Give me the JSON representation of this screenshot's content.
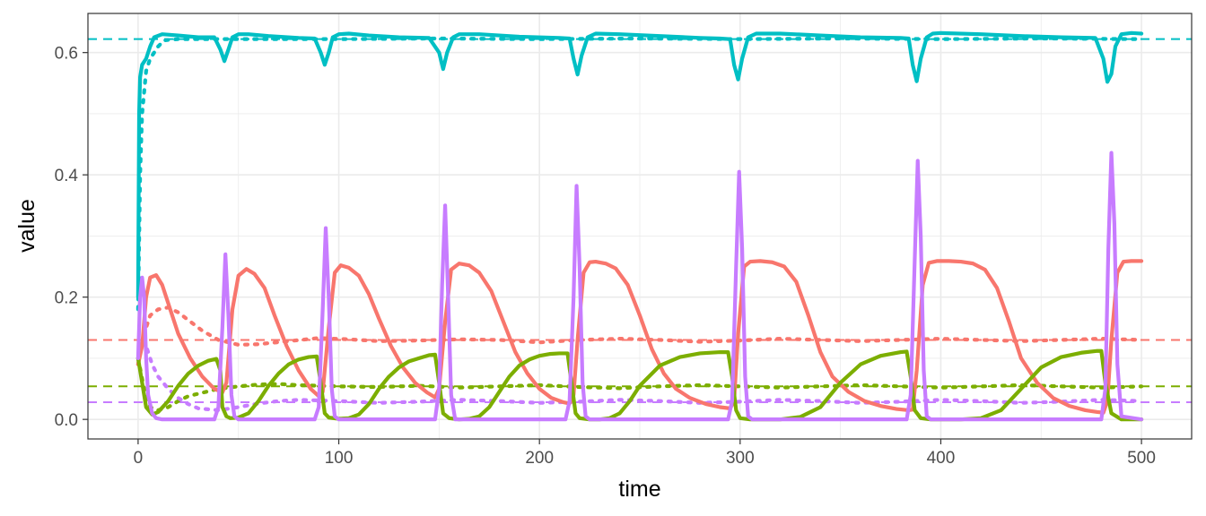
{
  "chart_data": {
    "type": "line",
    "title": "",
    "xlabel": "time",
    "ylabel": "value",
    "xlim": [
      -25,
      525
    ],
    "ylim": [
      -0.032,
      0.664
    ],
    "x_ticks": [
      0,
      100,
      200,
      300,
      400,
      500
    ],
    "x_tick_labels": [
      "0",
      "100",
      "200",
      "300",
      "400",
      "500"
    ],
    "y_ticks": [
      0.0,
      0.2,
      0.4,
      0.6
    ],
    "y_tick_labels": [
      "0.0",
      "0.2",
      "0.4",
      "0.6"
    ],
    "grid": true,
    "legend": "none",
    "colors": {
      "red": "#F8766D",
      "green": "#7CAE00",
      "cyan": "#00BFC4",
      "purple": "#C77CFF",
      "grid": "#ebebeb",
      "panel_border": "#333333"
    },
    "series": [
      {
        "color": "red",
        "style": "solid",
        "x": [
          0,
          2,
          4,
          6,
          9,
          12,
          16,
          20,
          26,
          32,
          38,
          42,
          44,
          47,
          50,
          54,
          58,
          63,
          68,
          74,
          80,
          86,
          90,
          92,
          95,
          98,
          101,
          105,
          110,
          115,
          120,
          126,
          132,
          138,
          144,
          148,
          150,
          153,
          156,
          160,
          165,
          170,
          176,
          182,
          188,
          194,
          200,
          206,
          212,
          215,
          217,
          219,
          222,
          225,
          228,
          233,
          238,
          244,
          250,
          256,
          262,
          268,
          275,
          283,
          290,
          295,
          297,
          299,
          302,
          305,
          310,
          316,
          322,
          328,
          334,
          340,
          346,
          354,
          362,
          370,
          378,
          384,
          386,
          388,
          391,
          394,
          398,
          404,
          410,
          416,
          422,
          428,
          434,
          440,
          448,
          456,
          464,
          472,
          478,
          481,
          483,
          485,
          488,
          491,
          495,
          500
        ],
        "y": [
          0.09,
          0.12,
          0.2,
          0.232,
          0.236,
          0.22,
          0.18,
          0.14,
          0.1,
          0.07,
          0.05,
          0.044,
          0.06,
          0.18,
          0.235,
          0.246,
          0.238,
          0.215,
          0.17,
          0.12,
          0.08,
          0.05,
          0.038,
          0.045,
          0.15,
          0.24,
          0.252,
          0.248,
          0.235,
          0.205,
          0.165,
          0.12,
          0.085,
          0.06,
          0.044,
          0.036,
          0.05,
          0.16,
          0.245,
          0.255,
          0.252,
          0.24,
          0.21,
          0.16,
          0.11,
          0.075,
          0.05,
          0.035,
          0.028,
          0.026,
          0.04,
          0.13,
          0.24,
          0.257,
          0.258,
          0.255,
          0.247,
          0.22,
          0.17,
          0.115,
          0.075,
          0.05,
          0.035,
          0.025,
          0.02,
          0.018,
          0.03,
          0.14,
          0.25,
          0.258,
          0.259,
          0.257,
          0.25,
          0.225,
          0.17,
          0.11,
          0.07,
          0.045,
          0.03,
          0.022,
          0.017,
          0.015,
          0.016,
          0.08,
          0.22,
          0.256,
          0.259,
          0.259,
          0.258,
          0.255,
          0.245,
          0.215,
          0.16,
          0.1,
          0.06,
          0.035,
          0.022,
          0.015,
          0.012,
          0.011,
          0.03,
          0.13,
          0.24,
          0.258,
          0.259,
          0.259
        ]
      },
      {
        "color": "red",
        "style": "dotted",
        "x": [
          0,
          3,
          6,
          10,
          15,
          20,
          26,
          32,
          40,
          50,
          60,
          75,
          90,
          105,
          120,
          140,
          160,
          180,
          200,
          220,
          240,
          260,
          280,
          300,
          320,
          340,
          360,
          380,
          400,
          420,
          440,
          460,
          480,
          500
        ],
        "y": [
          0.09,
          0.14,
          0.17,
          0.18,
          0.183,
          0.175,
          0.16,
          0.145,
          0.13,
          0.122,
          0.123,
          0.128,
          0.133,
          0.131,
          0.128,
          0.129,
          0.131,
          0.13,
          0.126,
          0.13,
          0.132,
          0.13,
          0.127,
          0.129,
          0.132,
          0.13,
          0.128,
          0.13,
          0.132,
          0.13,
          0.128,
          0.13,
          0.132,
          0.13
        ]
      },
      {
        "color": "red",
        "style": "dashed",
        "x": [
          -25,
          525
        ],
        "y": [
          0.13,
          0.13
        ]
      },
      {
        "color": "green",
        "style": "solid",
        "x": [
          0,
          2,
          4,
          7,
          10,
          15,
          20,
          25,
          30,
          35,
          39,
          41,
          42,
          44,
          46,
          50,
          55,
          60,
          65,
          70,
          75,
          80,
          85,
          89,
          91,
          93,
          95,
          100,
          105,
          110,
          115,
          120,
          125,
          130,
          135,
          140,
          145,
          148,
          150,
          152,
          155,
          160,
          165,
          170,
          175,
          180,
          185,
          190,
          195,
          200,
          205,
          210,
          214,
          216,
          218,
          220,
          225,
          230,
          235,
          240,
          245,
          250,
          260,
          270,
          280,
          290,
          294,
          296,
          298,
          300,
          305,
          310,
          320,
          330,
          340,
          350,
          360,
          370,
          380,
          383,
          385,
          387,
          390,
          395,
          400,
          410,
          420,
          430,
          440,
          450,
          460,
          470,
          478,
          480,
          482,
          485,
          490,
          500
        ],
        "y": [
          0.1,
          0.06,
          0.02,
          0.008,
          0.012,
          0.03,
          0.055,
          0.075,
          0.088,
          0.096,
          0.099,
          0.08,
          0.02,
          0.005,
          0.002,
          0.003,
          0.01,
          0.03,
          0.055,
          0.075,
          0.09,
          0.098,
          0.102,
          0.103,
          0.06,
          0.01,
          0.003,
          0.001,
          0.002,
          0.008,
          0.025,
          0.05,
          0.07,
          0.085,
          0.095,
          0.1,
          0.105,
          0.106,
          0.06,
          0.01,
          0.002,
          0.0,
          0.001,
          0.005,
          0.02,
          0.045,
          0.07,
          0.088,
          0.098,
          0.104,
          0.107,
          0.108,
          0.108,
          0.06,
          0.01,
          0.002,
          0.0,
          0.0,
          0.002,
          0.01,
          0.03,
          0.055,
          0.088,
          0.102,
          0.108,
          0.11,
          0.11,
          0.07,
          0.015,
          0.002,
          0.0,
          0.0,
          0.0,
          0.004,
          0.02,
          0.06,
          0.09,
          0.104,
          0.11,
          0.111,
          0.07,
          0.015,
          0.002,
          0.0,
          0.0,
          0.0,
          0.002,
          0.015,
          0.05,
          0.085,
          0.102,
          0.109,
          0.112,
          0.112,
          0.06,
          0.01,
          0.0,
          0.0
        ]
      },
      {
        "color": "green",
        "style": "dotted",
        "x": [
          0,
          3,
          6,
          10,
          15,
          20,
          25,
          30,
          40,
          50,
          60,
          70,
          80,
          100,
          120,
          140,
          160,
          180,
          200,
          220,
          240,
          260,
          280,
          300,
          320,
          340,
          360,
          380,
          400,
          420,
          440,
          460,
          480,
          500
        ],
        "y": [
          0.1,
          0.05,
          0.02,
          0.015,
          0.02,
          0.03,
          0.038,
          0.042,
          0.05,
          0.054,
          0.057,
          0.058,
          0.056,
          0.054,
          0.053,
          0.055,
          0.052,
          0.054,
          0.056,
          0.053,
          0.051,
          0.054,
          0.056,
          0.054,
          0.052,
          0.054,
          0.056,
          0.054,
          0.052,
          0.054,
          0.056,
          0.054,
          0.052,
          0.054
        ]
      },
      {
        "color": "green",
        "style": "dashed",
        "x": [
          -25,
          525
        ],
        "y": [
          0.054,
          0.054
        ]
      },
      {
        "color": "cyan",
        "style": "solid",
        "x": [
          0,
          0.5,
          1,
          2,
          4,
          6,
          8,
          12,
          20,
          30,
          38,
          41,
          43,
          45,
          47,
          50,
          55,
          65,
          80,
          88,
          91,
          93,
          95,
          97,
          100,
          105,
          115,
          130,
          145,
          150,
          152,
          154,
          157,
          160,
          170,
          190,
          210,
          215,
          217,
          219,
          221,
          224,
          228,
          240,
          260,
          280,
          290,
          295,
          297,
          299,
          301,
          304,
          308,
          320,
          340,
          360,
          380,
          384,
          386,
          388,
          390,
          393,
          396,
          400,
          420,
          440,
          460,
          477,
          481,
          483,
          485,
          487,
          490,
          495,
          500
        ],
        "y": [
          0.2,
          0.5,
          0.56,
          0.58,
          0.59,
          0.61,
          0.625,
          0.63,
          0.628,
          0.625,
          0.625,
          0.605,
          0.586,
          0.605,
          0.625,
          0.63,
          0.63,
          0.627,
          0.624,
          0.623,
          0.6,
          0.58,
          0.6,
          0.625,
          0.63,
          0.631,
          0.628,
          0.625,
          0.624,
          0.6,
          0.573,
          0.6,
          0.625,
          0.63,
          0.63,
          0.626,
          0.624,
          0.623,
          0.59,
          0.564,
          0.595,
          0.625,
          0.631,
          0.63,
          0.627,
          0.624,
          0.623,
          0.622,
          0.58,
          0.556,
          0.59,
          0.625,
          0.631,
          0.631,
          0.628,
          0.625,
          0.624,
          0.623,
          0.58,
          0.553,
          0.59,
          0.625,
          0.631,
          0.632,
          0.63,
          0.627,
          0.625,
          0.624,
          0.59,
          0.552,
          0.565,
          0.61,
          0.63,
          0.632,
          0.631
        ]
      },
      {
        "color": "cyan",
        "style": "dotted",
        "x": [
          0,
          1,
          2,
          4,
          6,
          8,
          10,
          13,
          16,
          20,
          30,
          50,
          100,
          150,
          200,
          250,
          300,
          350,
          400,
          450,
          500
        ],
        "y": [
          0.18,
          0.4,
          0.5,
          0.57,
          0.59,
          0.6,
          0.61,
          0.62,
          0.621,
          0.622,
          0.622,
          0.622,
          0.622,
          0.623,
          0.622,
          0.623,
          0.622,
          0.623,
          0.622,
          0.623,
          0.622
        ]
      },
      {
        "color": "cyan",
        "style": "dashed",
        "x": [
          -25,
          525
        ],
        "y": [
          0.622,
          0.622
        ]
      },
      {
        "color": "purple",
        "style": "solid",
        "x": [
          0,
          1,
          2,
          3,
          4,
          5,
          7,
          9,
          12,
          20,
          30,
          38,
          40,
          42,
          43.5,
          45,
          46.5,
          48,
          50,
          60,
          80,
          88,
          90,
          92,
          93.5,
          95,
          96.5,
          98,
          100,
          120,
          145,
          148,
          150,
          151.5,
          153,
          154.5,
          156,
          158,
          180,
          205,
          213,
          215,
          217,
          218.5,
          220,
          221.5,
          223,
          225,
          260,
          290,
          294,
          296,
          298,
          299.5,
          301,
          302.5,
          304,
          306,
          340,
          380,
          383,
          385,
          387,
          388.5,
          390,
          391.5,
          393,
          395,
          440,
          477,
          480,
          482,
          483.5,
          485,
          486.5,
          488,
          490,
          500
        ],
        "y": [
          0.1,
          0.2,
          0.232,
          0.2,
          0.1,
          0.04,
          0.01,
          0.002,
          0.0,
          0.0,
          0.0,
          0.0,
          0.02,
          0.15,
          0.27,
          0.17,
          0.04,
          0.005,
          0.0,
          0.0,
          0.0,
          0.0,
          0.02,
          0.18,
          0.313,
          0.2,
          0.05,
          0.005,
          0.0,
          0.0,
          0.0,
          0.0,
          0.05,
          0.22,
          0.35,
          0.2,
          0.04,
          0.0,
          0.0,
          0.0,
          0.0,
          0.03,
          0.2,
          0.382,
          0.25,
          0.06,
          0.005,
          0.0,
          0.0,
          0.0,
          0.0,
          0.03,
          0.25,
          0.405,
          0.28,
          0.07,
          0.005,
          0.0,
          0.0,
          0.0,
          0.0,
          0.04,
          0.26,
          0.423,
          0.3,
          0.08,
          0.005,
          0.0,
          0.0,
          0.0,
          0.0,
          0.05,
          0.28,
          0.436,
          0.32,
          0.09,
          0.005,
          0.0
        ]
      },
      {
        "color": "purple",
        "style": "dotted",
        "x": [
          0,
          2,
          4,
          7,
          10,
          15,
          20,
          25,
          30,
          40,
          50,
          60,
          70,
          80,
          100,
          120,
          140,
          160,
          180,
          200,
          220,
          240,
          260,
          280,
          300,
          320,
          340,
          360,
          380,
          400,
          420,
          440,
          460,
          480,
          500
        ],
        "y": [
          0.1,
          0.13,
          0.12,
          0.09,
          0.07,
          0.05,
          0.035,
          0.025,
          0.018,
          0.015,
          0.02,
          0.026,
          0.03,
          0.032,
          0.03,
          0.027,
          0.029,
          0.032,
          0.03,
          0.027,
          0.029,
          0.032,
          0.03,
          0.027,
          0.029,
          0.032,
          0.03,
          0.027,
          0.029,
          0.032,
          0.03,
          0.027,
          0.029,
          0.032,
          0.03
        ]
      },
      {
        "color": "purple",
        "style": "dashed",
        "x": [
          -25,
          525
        ],
        "y": [
          0.028,
          0.028
        ]
      }
    ]
  }
}
